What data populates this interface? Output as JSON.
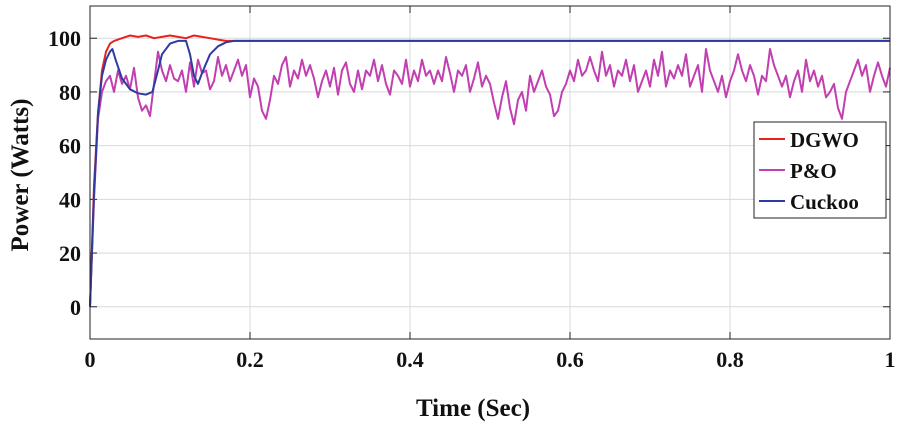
{
  "chart_data": {
    "type": "line",
    "title": "",
    "xlabel": "Time (Sec)",
    "ylabel": "Power (Watts)",
    "xlim": [
      0,
      1
    ],
    "ylim": [
      -12,
      112
    ],
    "xticks": [
      0,
      0.2,
      0.4,
      0.6,
      0.8,
      1
    ],
    "xtick_labels": [
      "0",
      "0.2",
      "0.4",
      "0.6",
      "0.8",
      "1"
    ],
    "yticks": [
      0,
      20,
      40,
      60,
      80,
      100
    ],
    "ytick_labels": [
      "0",
      "20",
      "40",
      "60",
      "80",
      "100"
    ],
    "grid": true,
    "legend_position": "right",
    "series": [
      {
        "name": "DGWO",
        "color": "#e8231d",
        "x": [
          0,
          0.005,
          0.01,
          0.015,
          0.02,
          0.025,
          0.03,
          0.04,
          0.05,
          0.06,
          0.07,
          0.08,
          0.09,
          0.1,
          0.11,
          0.12,
          0.13,
          0.14,
          0.15,
          0.16,
          0.17,
          0.18,
          0.2,
          0.4,
          0.6,
          0.8,
          1.0
        ],
        "y": [
          0,
          45,
          72,
          88,
          95,
          98,
          99,
          100,
          101,
          100.5,
          101,
          100,
          100.5,
          101,
          100.5,
          100,
          101,
          100.5,
          100,
          99.5,
          99,
          99,
          99,
          99,
          99,
          99,
          99
        ]
      },
      {
        "name": "P&O",
        "color": "#c13fb0",
        "x": [
          0,
          0.005,
          0.01,
          0.015,
          0.02,
          0.025,
          0.03,
          0.035,
          0.04,
          0.045,
          0.05,
          0.055,
          0.06,
          0.065,
          0.07,
          0.075,
          0.08,
          0.085,
          0.09,
          0.095,
          0.1,
          0.105,
          0.11,
          0.115,
          0.12,
          0.125,
          0.13,
          0.135,
          0.14,
          0.145,
          0.15,
          0.155,
          0.16,
          0.165,
          0.17,
          0.175,
          0.18,
          0.185,
          0.19,
          0.195,
          0.2,
          0.205,
          0.21,
          0.215,
          0.22,
          0.225,
          0.23,
          0.235,
          0.24,
          0.245,
          0.25,
          0.255,
          0.26,
          0.265,
          0.27,
          0.275,
          0.28,
          0.285,
          0.29,
          0.295,
          0.3,
          0.305,
          0.31,
          0.315,
          0.32,
          0.325,
          0.33,
          0.335,
          0.34,
          0.345,
          0.35,
          0.355,
          0.36,
          0.365,
          0.37,
          0.375,
          0.38,
          0.385,
          0.39,
          0.395,
          0.4,
          0.405,
          0.41,
          0.415,
          0.42,
          0.425,
          0.43,
          0.435,
          0.44,
          0.445,
          0.45,
          0.455,
          0.46,
          0.465,
          0.47,
          0.475,
          0.48,
          0.485,
          0.49,
          0.495,
          0.5,
          0.505,
          0.51,
          0.515,
          0.52,
          0.525,
          0.53,
          0.535,
          0.54,
          0.545,
          0.55,
          0.555,
          0.56,
          0.565,
          0.57,
          0.575,
          0.58,
          0.585,
          0.59,
          0.595,
          0.6,
          0.605,
          0.61,
          0.615,
          0.62,
          0.625,
          0.63,
          0.635,
          0.64,
          0.645,
          0.65,
          0.655,
          0.66,
          0.665,
          0.67,
          0.675,
          0.68,
          0.685,
          0.69,
          0.695,
          0.7,
          0.705,
          0.71,
          0.715,
          0.72,
          0.725,
          0.73,
          0.735,
          0.74,
          0.745,
          0.75,
          0.755,
          0.76,
          0.765,
          0.77,
          0.775,
          0.78,
          0.785,
          0.79,
          0.795,
          0.8,
          0.805,
          0.81,
          0.815,
          0.82,
          0.825,
          0.83,
          0.835,
          0.84,
          0.845,
          0.85,
          0.855,
          0.86,
          0.865,
          0.87,
          0.875,
          0.88,
          0.885,
          0.89,
          0.895,
          0.9,
          0.905,
          0.91,
          0.915,
          0.92,
          0.925,
          0.93,
          0.935,
          0.94,
          0.945,
          0.95,
          0.955,
          0.96,
          0.965,
          0.97,
          0.975,
          0.98,
          0.985,
          0.99,
          0.995,
          1.0
        ],
        "y": [
          0,
          40,
          70,
          80,
          84,
          86,
          80,
          88,
          83,
          86,
          81,
          89,
          78,
          73,
          75,
          71,
          83,
          95,
          88,
          84,
          90,
          85,
          84,
          88,
          80,
          91,
          82,
          92,
          87,
          88,
          81,
          84,
          93,
          86,
          90,
          84,
          88,
          92,
          86,
          90,
          78,
          85,
          82,
          73,
          70,
          77,
          86,
          83,
          90,
          93,
          82,
          88,
          85,
          92,
          86,
          90,
          85,
          78,
          84,
          88,
          82,
          89,
          79,
          88,
          91,
          83,
          80,
          88,
          81,
          88,
          86,
          92,
          84,
          90,
          83,
          79,
          88,
          86,
          83,
          92,
          82,
          88,
          84,
          92,
          86,
          88,
          83,
          88,
          84,
          93,
          87,
          80,
          88,
          86,
          90,
          80,
          85,
          91,
          82,
          86,
          83,
          76,
          70,
          78,
          84,
          74,
          68,
          77,
          80,
          73,
          86,
          80,
          84,
          88,
          82,
          79,
          71,
          73,
          80,
          83,
          88,
          84,
          92,
          86,
          88,
          93,
          88,
          84,
          95,
          86,
          90,
          82,
          88,
          86,
          92,
          84,
          90,
          80,
          84,
          88,
          82,
          92,
          86,
          95,
          82,
          88,
          85,
          90,
          86,
          94,
          82,
          86,
          90,
          80,
          96,
          88,
          84,
          80,
          86,
          78,
          84,
          88,
          94,
          88,
          84,
          90,
          86,
          79,
          86,
          84,
          96,
          90,
          86,
          82,
          86,
          78,
          84,
          88,
          80,
          92,
          84,
          88,
          82,
          86,
          78,
          80,
          83,
          74,
          70,
          80,
          84,
          88,
          92,
          86,
          90,
          80,
          86,
          91,
          86,
          82,
          89
        ]
      },
      {
        "name": "Cuckoo",
        "color": "#2d3c9e",
        "x": [
          0,
          0.005,
          0.01,
          0.015,
          0.02,
          0.025,
          0.028,
          0.032,
          0.04,
          0.05,
          0.06,
          0.07,
          0.078,
          0.085,
          0.09,
          0.1,
          0.11,
          0.12,
          0.125,
          0.13,
          0.135,
          0.14,
          0.15,
          0.16,
          0.17,
          0.18,
          0.2,
          0.4,
          0.6,
          0.8,
          1.0
        ],
        "y": [
          0,
          42,
          72,
          86,
          92,
          95,
          96,
          92,
          85,
          81,
          79.5,
          79,
          80,
          88,
          94,
          98,
          99,
          99,
          94,
          86,
          83,
          87,
          94,
          97,
          98.5,
          99,
          99,
          99,
          99,
          99,
          99
        ]
      }
    ]
  }
}
